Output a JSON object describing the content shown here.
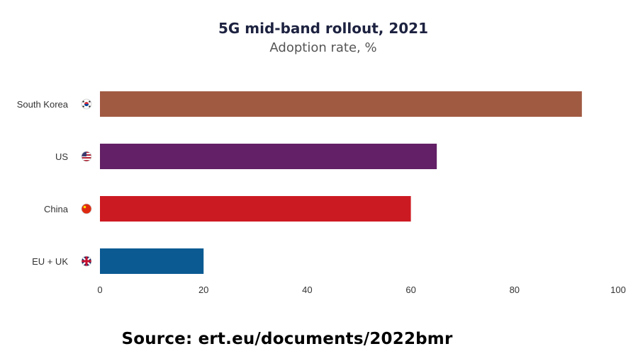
{
  "chart_data": {
    "type": "bar",
    "orientation": "horizontal",
    "title": "5G mid-band rollout, 2021",
    "subtitle": "Adoption rate, %",
    "categories": [
      "South Korea",
      "US",
      "China",
      "EU + UK"
    ],
    "values": [
      93,
      65,
      60,
      20
    ],
    "colors": [
      "#a15a42",
      "#632066",
      "#cc1a22",
      "#0b5a92"
    ],
    "flag_icons": [
      "south-korea-flag-icon",
      "us-flag-icon",
      "china-flag-icon",
      "eu-uk-flag-icon"
    ],
    "xlim": [
      0,
      100
    ],
    "xticks": [
      "0",
      "20",
      "40",
      "60",
      "80",
      "100"
    ],
    "grid": false,
    "legend": "none"
  },
  "footer": {
    "source": "Source: ert.eu/documents/2022bmr"
  }
}
